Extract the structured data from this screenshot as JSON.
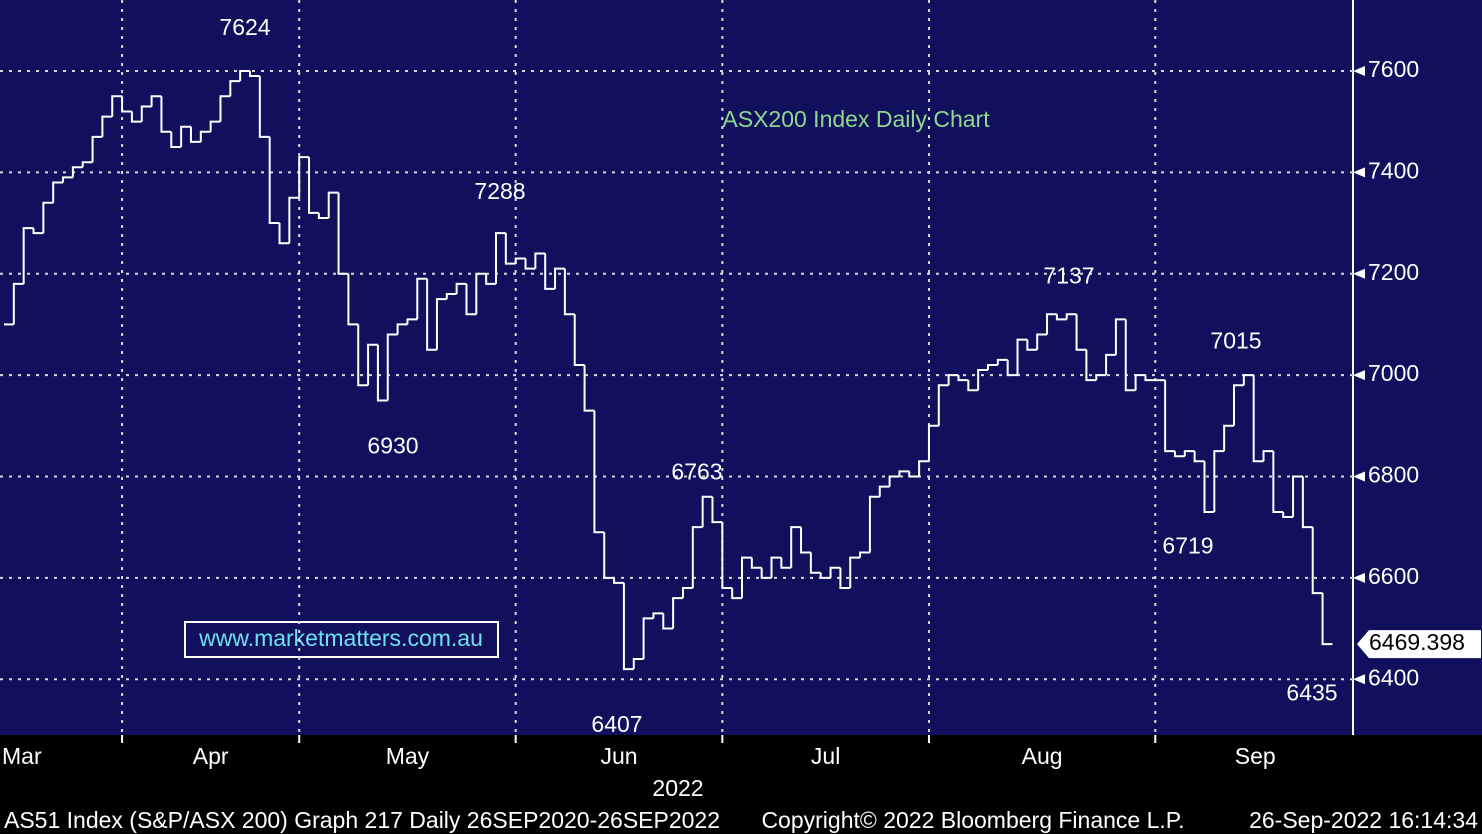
{
  "chart_data": {
    "type": "line",
    "step": true,
    "title": "ASX200 Index Daily Chart",
    "watermark": "www.marketmatters.com.au",
    "year_label": "2022",
    "footer": [
      "AS51 Index (S&P/ASX 200) Graph 217  Daily 26SEP2020-26SEP2022",
      "Copyright© 2022 Bloomberg Finance L.P.",
      "26-Sep-2022 16:14:34"
    ],
    "color": "#ffffff",
    "grid": true,
    "ylim": [
      6290,
      7740
    ],
    "yticks": [
      6400,
      6600,
      6800,
      7000,
      7200,
      7400,
      7600
    ],
    "categories": [
      "Mar",
      null,
      null,
      null,
      null,
      null,
      null,
      null,
      null,
      null,
      null,
      null,
      "Apr",
      null,
      null,
      null,
      null,
      null,
      null,
      null,
      null,
      null,
      null,
      null,
      null,
      null,
      null,
      null,
      null,
      null,
      "May",
      null,
      null,
      null,
      null,
      null,
      null,
      null,
      null,
      null,
      null,
      null,
      null,
      null,
      null,
      null,
      null,
      null,
      null,
      null,
      null,
      null,
      "Jun",
      null,
      null,
      null,
      null,
      null,
      null,
      null,
      null,
      null,
      null,
      null,
      null,
      null,
      null,
      null,
      null,
      null,
      null,
      null,
      null,
      "Jul",
      null,
      null,
      null,
      null,
      null,
      null,
      null,
      null,
      null,
      null,
      null,
      null,
      null,
      null,
      null,
      null,
      null,
      null,
      null,
      null,
      "Aug",
      null,
      null,
      null,
      null,
      null,
      null,
      null,
      null,
      null,
      null,
      null,
      null,
      null,
      null,
      null,
      null,
      null,
      null,
      null,
      null,
      null,
      null,
      "Sep",
      null,
      null,
      null,
      null,
      null,
      null,
      null,
      null,
      null,
      null,
      null,
      null,
      null,
      null,
      null,
      null,
      null
    ],
    "values": [
      7100,
      7180,
      7290,
      7280,
      7340,
      7380,
      7390,
      7410,
      7420,
      7470,
      7510,
      7550,
      7520,
      7500,
      7530,
      7550,
      7480,
      7450,
      7490,
      7460,
      7480,
      7500,
      7550,
      7580,
      7600,
      7590,
      7470,
      7300,
      7260,
      7350,
      7430,
      7320,
      7310,
      7360,
      7200,
      7100,
      6980,
      7060,
      6950,
      7080,
      7100,
      7110,
      7190,
      7050,
      7150,
      7160,
      7180,
      7120,
      7200,
      7180,
      7280,
      7220,
      7230,
      7210,
      7240,
      7170,
      7210,
      7120,
      7020,
      6930,
      6690,
      6600,
      6590,
      6420,
      6440,
      6520,
      6530,
      6500,
      6560,
      6580,
      6700,
      6760,
      6710,
      6580,
      6560,
      6640,
      6620,
      6600,
      6640,
      6620,
      6700,
      6650,
      6610,
      6600,
      6620,
      6580,
      6640,
      6650,
      6760,
      6780,
      6800,
      6810,
      6800,
      6830,
      6900,
      6980,
      7000,
      6990,
      6970,
      7010,
      7020,
      7030,
      7000,
      7070,
      7050,
      7080,
      7120,
      7110,
      7120,
      7050,
      6990,
      7000,
      7040,
      7110,
      6970,
      7000,
      6990,
      6990,
      6850,
      6840,
      6850,
      6830,
      6730,
      6850,
      6900,
      6980,
      7000,
      6830,
      6850,
      6730,
      6720,
      6800,
      6700,
      6570,
      6469.398
    ],
    "annotations": [
      {
        "text": "7624",
        "value": 7624
      },
      {
        "text": "7288",
        "value": 7288
      },
      {
        "text": "6930",
        "value": 6930
      },
      {
        "text": "6763",
        "value": 6763
      },
      {
        "text": "6407",
        "value": 6407
      },
      {
        "text": "7137",
        "value": 7137
      },
      {
        "text": "7015",
        "value": 7015
      },
      {
        "text": "6719",
        "value": 6719
      },
      {
        "text": "6435",
        "value": 6435
      }
    ]
  }
}
